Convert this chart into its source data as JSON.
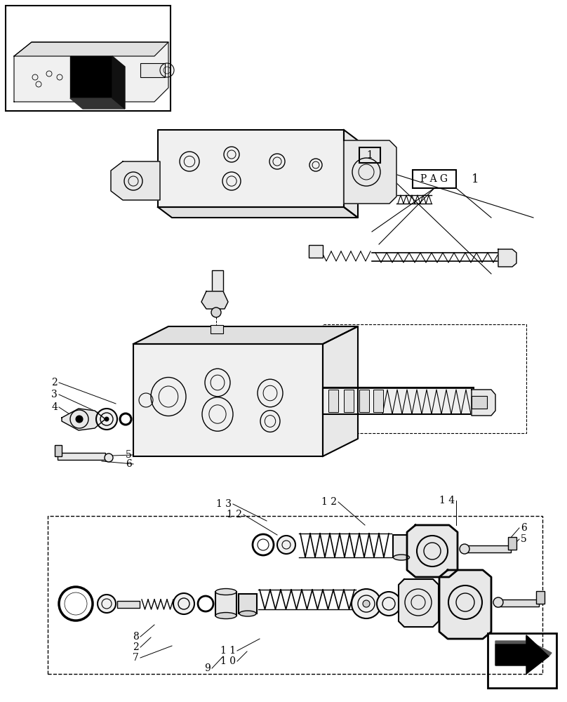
{
  "bg_color": "#ffffff",
  "line_color": "#000000",
  "fig_width": 8.08,
  "fig_height": 10.0,
  "dpi": 100,
  "labels": {
    "pag_box": "PAG",
    "label_1": "1",
    "label_2": "2",
    "label_3": "3",
    "label_4": "4",
    "label_5a": "5",
    "label_6a": "6",
    "label_12a": "1 2",
    "label_13": "1 3",
    "label_14": "1 4",
    "label_12b": "1 2",
    "label_11": "1 1",
    "label_10": "1 0",
    "label_9": "9",
    "label_8": "8",
    "label_2b": "2",
    "label_7": "7",
    "label_6b": "6",
    "label_5b": "5"
  }
}
